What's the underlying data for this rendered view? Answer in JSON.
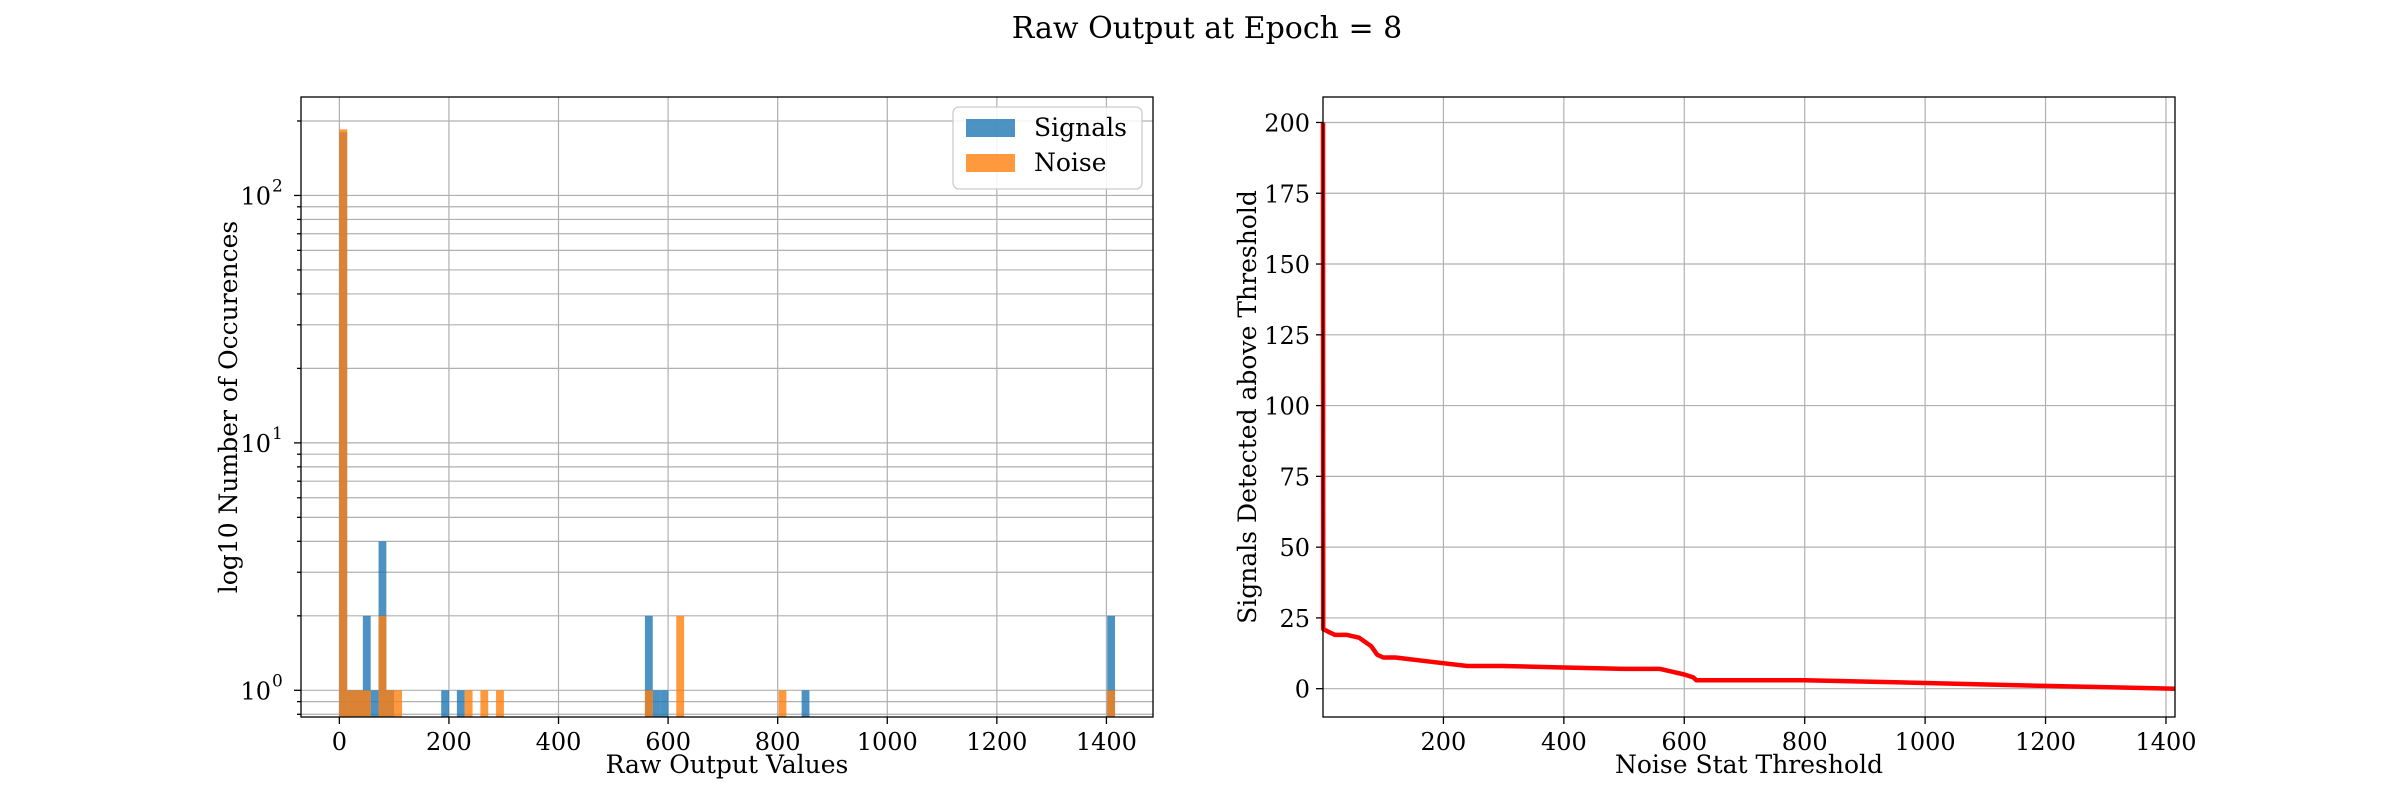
{
  "figure": {
    "suptitle": "Raw Output at Epoch = 8"
  },
  "colors": {
    "signals": "#1f77b4",
    "noise": "#ff7f0e",
    "roc_line": "#ff0000",
    "grid": "#b0b0b0"
  },
  "chart_data": [
    {
      "type": "bar",
      "subtype": "histogram",
      "xlabel": "Raw Output Values",
      "ylabel": "log10 Number of Occurences",
      "xlim": [
        -70,
        1485
      ],
      "xticks": [
        0,
        200,
        400,
        600,
        800,
        1000,
        1200,
        1400
      ],
      "xtick_labels": [
        "0",
        "200",
        "400",
        "600",
        "800",
        "1000",
        "1200",
        "1400"
      ],
      "yscale": "log",
      "ylim": [
        0.78,
        250
      ],
      "yticks": [
        1,
        10,
        100
      ],
      "ytick_labels": [
        "10",
        "10",
        "10"
      ],
      "ytick_exponents": [
        "0",
        "1",
        "2"
      ],
      "grid": true,
      "legend": {
        "position": "top-right",
        "entries": [
          "Signals",
          "Noise"
        ]
      },
      "bin_width": 14.3,
      "series": [
        {
          "name": "Signals",
          "color": "#1f77b4",
          "alpha": 0.8,
          "bins": [
            {
              "x": 0,
              "count": 180
            },
            {
              "x": 14.3,
              "count": 1
            },
            {
              "x": 28.6,
              "count": 1
            },
            {
              "x": 42.9,
              "count": 2
            },
            {
              "x": 57.2,
              "count": 1
            },
            {
              "x": 71.5,
              "count": 4
            },
            {
              "x": 85.8,
              "count": 1
            },
            {
              "x": 185.9,
              "count": 1
            },
            {
              "x": 214.5,
              "count": 1
            },
            {
              "x": 557.7,
              "count": 2
            },
            {
              "x": 572.0,
              "count": 1
            },
            {
              "x": 586.3,
              "count": 1
            },
            {
              "x": 843.7,
              "count": 1
            },
            {
              "x": 1401.4,
              "count": 2
            }
          ]
        },
        {
          "name": "Noise",
          "color": "#ff7f0e",
          "alpha": 0.8,
          "bins": [
            {
              "x": 0,
              "count": 185
            },
            {
              "x": 14.3,
              "count": 1
            },
            {
              "x": 28.6,
              "count": 1
            },
            {
              "x": 42.9,
              "count": 1
            },
            {
              "x": 71.5,
              "count": 2
            },
            {
              "x": 85.8,
              "count": 1
            },
            {
              "x": 100.1,
              "count": 1
            },
            {
              "x": 228.8,
              "count": 1
            },
            {
              "x": 257.4,
              "count": 1
            },
            {
              "x": 286.0,
              "count": 1
            },
            {
              "x": 557.7,
              "count": 1
            },
            {
              "x": 614.9,
              "count": 2
            },
            {
              "x": 801.6,
              "count": 1
            },
            {
              "x": 1401.4,
              "count": 1
            }
          ]
        }
      ]
    },
    {
      "type": "line",
      "xlabel": "Noise Stat Threshold",
      "ylabel": "Signals Detected above Threshold",
      "xlim": [
        0,
        1415
      ],
      "ylim": [
        -10,
        209
      ],
      "xticks": [
        200,
        400,
        600,
        800,
        1000,
        1200,
        1400
      ],
      "xtick_labels": [
        "200",
        "400",
        "600",
        "800",
        "1000",
        "1200",
        "1400"
      ],
      "yticks": [
        0,
        25,
        50,
        75,
        100,
        125,
        150,
        175,
        200
      ],
      "ytick_labels": [
        "0",
        "25",
        "50",
        "75",
        "100",
        "125",
        "150",
        "175",
        "200"
      ],
      "grid": true,
      "series": [
        {
          "color": "#ff0000",
          "x": [
            0,
            0.3,
            1,
            10,
            20,
            40,
            60,
            80,
            90,
            100,
            120,
            180,
            240,
            300,
            400,
            500,
            560,
            570,
            600,
            615,
            620,
            625,
            800,
            1000,
            1200,
            1415
          ],
          "y": [
            200,
            21,
            21,
            20,
            19,
            19,
            18,
            15,
            12,
            11,
            11,
            9.5,
            8,
            8,
            7.5,
            7,
            7,
            6.5,
            5,
            4,
            3,
            3,
            3,
            2,
            1,
            0
          ]
        }
      ]
    }
  ]
}
